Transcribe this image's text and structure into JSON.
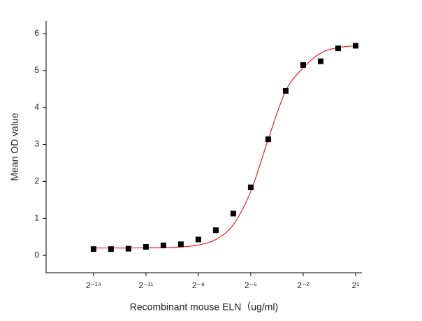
{
  "chart_data": {
    "type": "scatter",
    "x_label": "Recombinant mouse ELN（ug/ml)",
    "y_label": "Mean OD value",
    "xscale": "log2",
    "x": [
      6.103515625e-05,
      0.0001220703125,
      0.000244140625,
      0.00048828125,
      0.0009765625,
      0.001953125,
      0.00390625,
      0.0078125,
      0.015625,
      0.03125,
      0.0625,
      0.125,
      0.25,
      0.5,
      1,
      2
    ],
    "series": [
      {
        "type": "scatter",
        "color": "#000000",
        "values": [
          0.17,
          0.17,
          0.18,
          0.23,
          0.27,
          0.3,
          0.43,
          0.68,
          1.13,
          1.84,
          3.14,
          4.45,
          5.15,
          5.25,
          5.6,
          5.67
        ]
      },
      {
        "type": "line",
        "color": "#e8202a",
        "values": [
          0.2,
          0.2,
          0.2,
          0.203,
          0.209,
          0.227,
          0.28,
          0.43,
          0.83,
          1.73,
          3.14,
          4.45,
          5.07,
          5.47,
          5.62,
          5.67
        ]
      }
    ],
    "xlim": [
      9.3e-06,
      2.57
    ],
    "xticks": [
      {
        "value": 6.103515625e-05,
        "label": "2⁻¹⁴"
      },
      {
        "value": 0.00048828125,
        "label": "2⁻¹¹"
      },
      {
        "value": 0.00390625,
        "label": "2⁻⁸"
      },
      {
        "value": 0.03125,
        "label": "2⁻⁵"
      },
      {
        "value": 0.25,
        "label": "2⁻²"
      },
      {
        "value": 2,
        "label": "2¹"
      }
    ],
    "ylim": [
      -0.47,
      6.34
    ],
    "yticks": [
      0,
      1,
      2,
      3,
      4,
      5,
      6
    ]
  }
}
